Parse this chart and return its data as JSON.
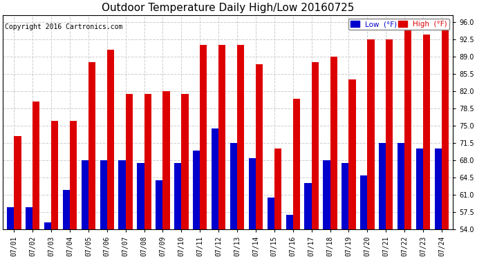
{
  "title": "Outdoor Temperature Daily High/Low 20160725",
  "copyright": "Copyright 2016 Cartronics.com",
  "dates": [
    "07/01",
    "07/02",
    "07/03",
    "07/04",
    "07/05",
    "07/06",
    "07/07",
    "07/08",
    "07/09",
    "07/10",
    "07/11",
    "07/12",
    "07/13",
    "07/14",
    "07/15",
    "07/16",
    "07/17",
    "07/18",
    "07/19",
    "07/20",
    "07/21",
    "07/22",
    "07/23",
    "07/24"
  ],
  "highs": [
    73.0,
    80.0,
    76.0,
    76.0,
    88.0,
    90.5,
    81.5,
    81.5,
    82.0,
    81.5,
    91.5,
    91.5,
    91.5,
    87.5,
    70.5,
    80.5,
    88.0,
    89.0,
    84.5,
    92.5,
    92.5,
    96.0,
    93.5,
    95.0
  ],
  "lows": [
    58.5,
    58.5,
    55.5,
    62.0,
    68.0,
    68.0,
    68.0,
    67.5,
    64.0,
    67.5,
    70.0,
    74.5,
    71.5,
    68.5,
    60.5,
    57.0,
    63.5,
    68.0,
    67.5,
    65.0,
    71.5,
    71.5,
    70.5,
    70.5
  ],
  "low_color": "#0000cc",
  "high_color": "#dd0000",
  "background_color": "#ffffff",
  "grid_color": "#cccccc",
  "ylim_min": 54.0,
  "ylim_max": 97.5,
  "yticks": [
    54.0,
    57.5,
    61.0,
    64.5,
    68.0,
    71.5,
    75.0,
    78.5,
    82.0,
    85.5,
    89.0,
    92.5,
    96.0
  ],
  "bar_width": 0.38,
  "legend_low_label": "Low  (°F)",
  "legend_high_label": "High  (°F)",
  "title_fontsize": 11,
  "copyright_fontsize": 7,
  "tick_fontsize": 7
}
